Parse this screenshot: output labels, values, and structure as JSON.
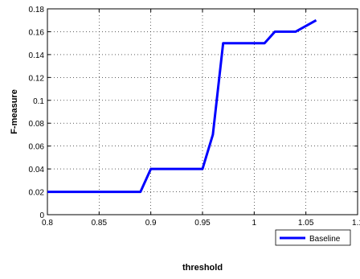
{
  "chart_data": {
    "type": "line",
    "title": "",
    "xlabel": "threshold",
    "ylabel": "F-measure",
    "xlim": [
      0.8,
      1.1
    ],
    "ylim": [
      0,
      0.18
    ],
    "x_ticks": [
      "0.8",
      "0.85",
      "0.9",
      "0.95",
      "1",
      "1.05",
      "1.1"
    ],
    "y_ticks": [
      "0",
      "0.02",
      "0.04",
      "0.06",
      "0.08",
      "0.1",
      "0.12",
      "0.14",
      "0.16",
      "0.18"
    ],
    "grid": true,
    "legend_position": "bottom-right",
    "series": [
      {
        "name": "Baseline",
        "color": "#0000ff",
        "x": [
          0.8,
          0.89,
          0.9,
          0.95,
          0.96,
          0.97,
          1.01,
          1.02,
          1.04,
          1.06
        ],
        "y": [
          0.02,
          0.02,
          0.04,
          0.04,
          0.07,
          0.15,
          0.15,
          0.16,
          0.16,
          0.17
        ]
      }
    ]
  }
}
